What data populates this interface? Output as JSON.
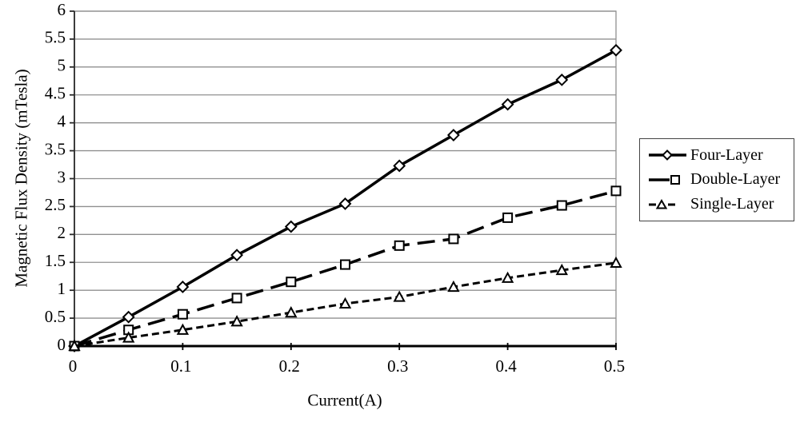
{
  "chart_data": {
    "type": "line",
    "title": "",
    "xlabel": "Current(A)",
    "ylabel": "Magnetic Flux Density (mTesla)",
    "xlim": [
      0,
      0.5
    ],
    "ylim": [
      0,
      6
    ],
    "x_ticks": [
      {
        "value": 0,
        "label": "0"
      },
      {
        "value": 0.1,
        "label": "0.1"
      },
      {
        "value": 0.2,
        "label": "0.2"
      },
      {
        "value": 0.3,
        "label": "0.3"
      },
      {
        "value": 0.4,
        "label": "0.4"
      },
      {
        "value": 0.5,
        "label": "0.5"
      }
    ],
    "y_ticks": [
      {
        "value": 0,
        "label": "0"
      },
      {
        "value": 0.5,
        "label": "0.5"
      },
      {
        "value": 1,
        "label": "1"
      },
      {
        "value": 1.5,
        "label": "1.5"
      },
      {
        "value": 2,
        "label": "2"
      },
      {
        "value": 2.5,
        "label": "2.5"
      },
      {
        "value": 3,
        "label": "3"
      },
      {
        "value": 3.5,
        "label": "3.5"
      },
      {
        "value": 4,
        "label": "4"
      },
      {
        "value": 4.5,
        "label": "4.5"
      },
      {
        "value": 5,
        "label": "5"
      },
      {
        "value": 5.5,
        "label": "5.5"
      },
      {
        "value": 6,
        "label": "6"
      }
    ],
    "grid": "horizontal",
    "legend_position": "right-outside",
    "x": [
      0,
      0.05,
      0.1,
      0.15,
      0.2,
      0.25,
      0.3,
      0.35,
      0.4,
      0.45,
      0.5
    ],
    "series": [
      {
        "name": "Four-Layer",
        "marker": "diamond",
        "line": "solid",
        "values": [
          0,
          0.52,
          1.06,
          1.63,
          2.14,
          2.55,
          3.23,
          3.78,
          4.33,
          4.77,
          5.3
        ]
      },
      {
        "name": "Double-Layer",
        "marker": "square",
        "line": "long-dash",
        "values": [
          0,
          0.29,
          0.57,
          0.86,
          1.15,
          1.46,
          1.8,
          1.92,
          2.3,
          2.52,
          2.78
        ]
      },
      {
        "name": "Single-Layer",
        "marker": "triangle",
        "line": "short-dash",
        "values": [
          0,
          0.15,
          0.29,
          0.44,
          0.6,
          0.76,
          0.88,
          1.06,
          1.22,
          1.36,
          1.49
        ]
      }
    ],
    "colors": {
      "line": "#000000",
      "grid": "#909090",
      "background": "#ffffff",
      "marker_fill": "#ffffff"
    }
  }
}
